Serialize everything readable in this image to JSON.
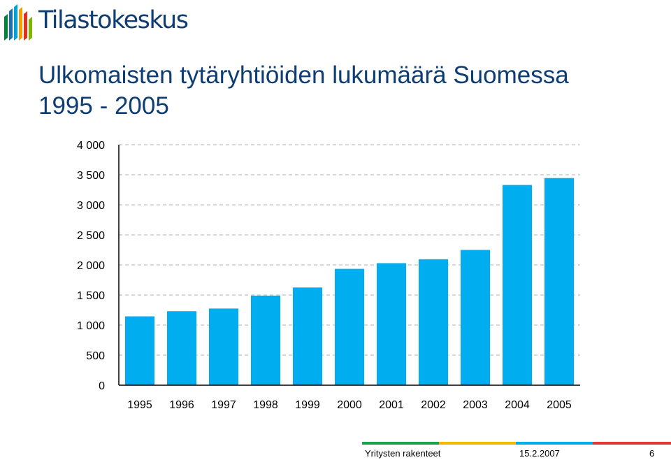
{
  "brand": {
    "name": "Tilastokeskus",
    "stripe_colors": [
      "#00843d",
      "#1a6fb5",
      "#00a3e0",
      "#f4a000",
      "#e0301e",
      "#7ab800"
    ]
  },
  "title": {
    "line1": "Ulkomaisten tytäryhtiöiden lukumäärä Suomessa",
    "line2": "1995 - 2005"
  },
  "chart_data": {
    "type": "bar",
    "categories": [
      "1995",
      "1996",
      "1997",
      "1998",
      "1999",
      "2000",
      "2001",
      "2002",
      "2003",
      "2004",
      "2005"
    ],
    "values": [
      1145,
      1230,
      1275,
      1490,
      1625,
      1935,
      2030,
      2095,
      2250,
      3330,
      3445
    ],
    "ylim": [
      0,
      4000
    ],
    "yticks": [
      0,
      500,
      1000,
      1500,
      2000,
      2500,
      3000,
      3500,
      4000
    ],
    "ytick_labels": [
      "0",
      "500",
      "1 000",
      "1 500",
      "2 000",
      "2 500",
      "3 000",
      "3 500",
      "4 000"
    ],
    "grid": true,
    "bar_color": "#00aeef"
  },
  "footer": {
    "source": "Yritysten rakenteet",
    "date": "15.2.2007",
    "page": "6",
    "bar_colors": [
      "#1aa34a",
      "#f5b800",
      "#00aeef",
      "#e53935"
    ]
  }
}
